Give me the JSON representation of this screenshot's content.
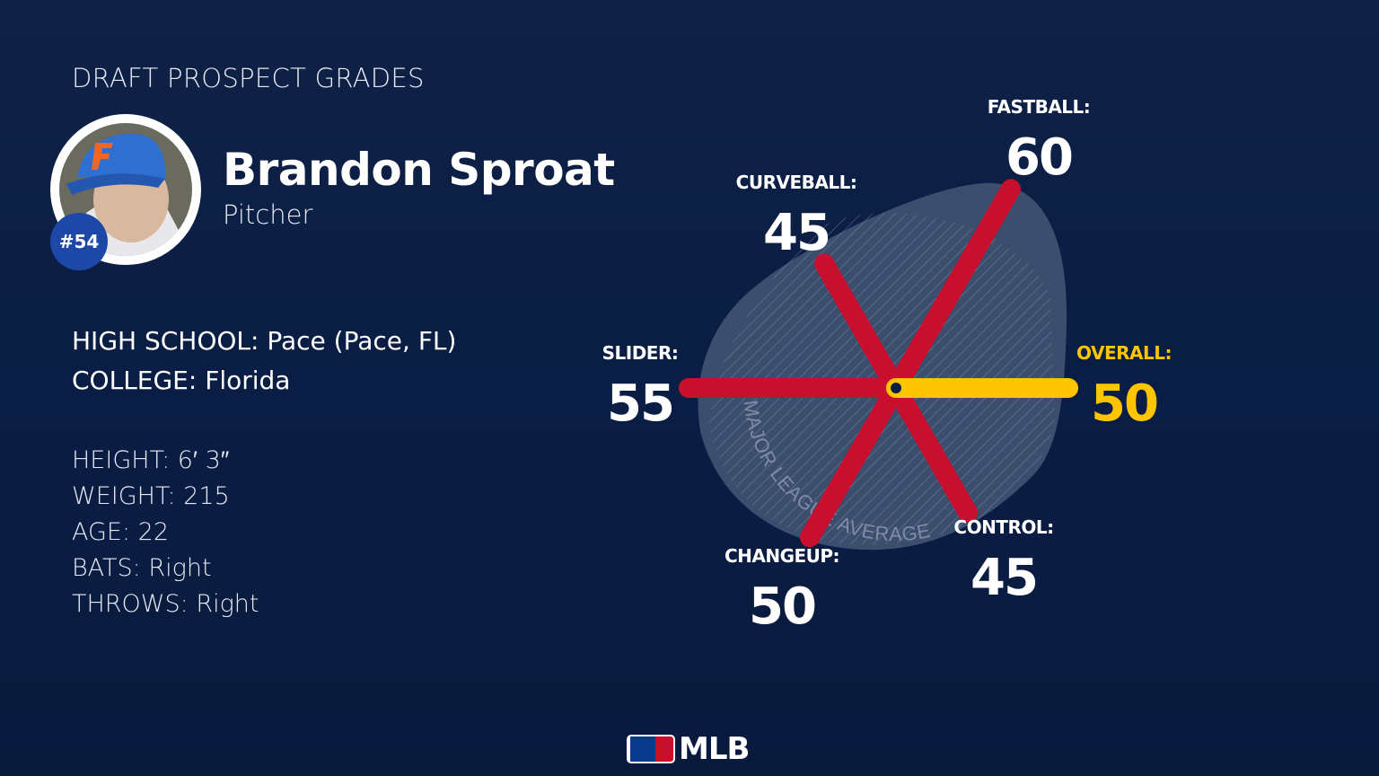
{
  "header": {
    "kicker": "DRAFT PROSPECT GRADES"
  },
  "player": {
    "name": "Brandon Sproat",
    "position": "Pitcher",
    "number": "#54",
    "high_school_label": "HIGH SCHOOL:",
    "high_school": "Pace (Pace, FL)",
    "college_label": "COLLEGE:",
    "college": "Florida",
    "stats": [
      "HEIGHT: 6′ 3″",
      "WEIGHT: 215",
      "AGE: 22",
      "BATS: Right",
      "THROWS: Right"
    ]
  },
  "chart_data": {
    "type": "radar",
    "baseline_label": "MAJOR LEAGUE AVERAGE",
    "axes": [
      {
        "label": "FASTBALL:",
        "value": 60,
        "color": "#c8102e"
      },
      {
        "label": "CURVEBALL:",
        "value": 45,
        "color": "#c8102e"
      },
      {
        "label": "SLIDER:",
        "value": 55,
        "color": "#c8102e"
      },
      {
        "label": "CHANGEUP:",
        "value": 50,
        "color": "#c8102e"
      },
      {
        "label": "CONTROL:",
        "value": 45,
        "color": "#c8102e"
      },
      {
        "label": "OVERALL:",
        "value": 50,
        "color": "#ffc500"
      }
    ]
  },
  "footer": {
    "logo": "MLB"
  }
}
